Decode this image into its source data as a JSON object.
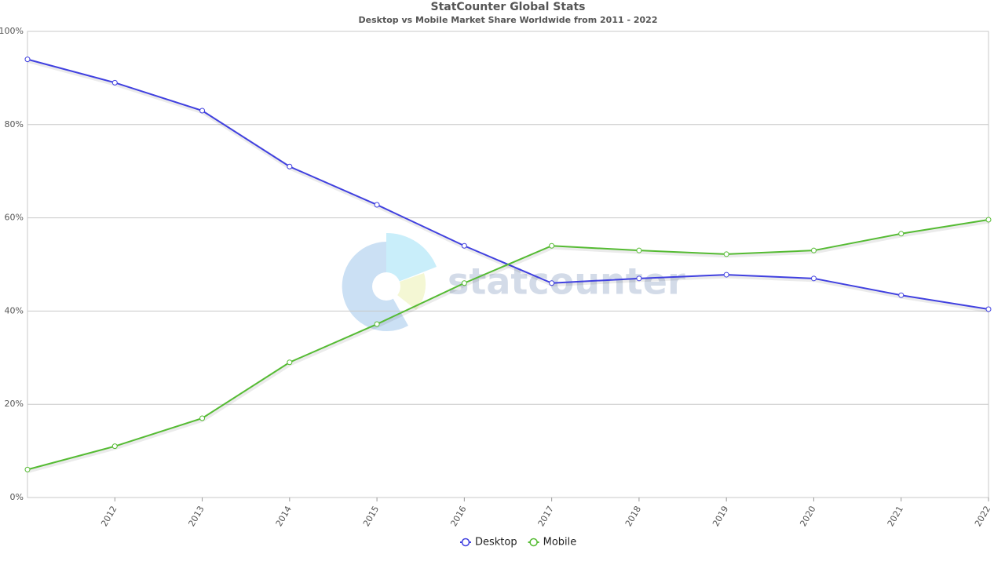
{
  "chart_data": {
    "type": "line",
    "title": "StatCounter Global Stats",
    "subtitle": "Desktop vs Mobile Market Share Worldwide from 2011 - 2022",
    "watermark": "statcounter",
    "x": [
      2011,
      2012,
      2013,
      2014,
      2015,
      2016,
      2017,
      2018,
      2019,
      2020,
      2021,
      2022
    ],
    "xlim": [
      2011,
      2022
    ],
    "xticks": [
      2012,
      2013,
      2014,
      2015,
      2016,
      2017,
      2018,
      2019,
      2020,
      2021,
      2022
    ],
    "ylim": [
      0,
      100
    ],
    "yticks": [
      {
        "value": 0,
        "label": "0%"
      },
      {
        "value": 20,
        "label": "20%"
      },
      {
        "value": 40,
        "label": "40%"
      },
      {
        "value": 60,
        "label": "60%"
      },
      {
        "value": 80,
        "label": "80%"
      },
      {
        "value": 100,
        "label": "100%"
      }
    ],
    "grid": true,
    "legend": "bottom",
    "series": [
      {
        "name": "Desktop",
        "color": "#4040e0",
        "values": [
          94,
          89,
          83,
          71,
          62.8,
          54,
          46,
          47,
          47.8,
          47,
          43.4,
          40.4
        ]
      },
      {
        "name": "Mobile",
        "color": "#55bb33",
        "values": [
          6,
          11,
          17,
          29,
          37.2,
          46,
          54,
          53,
          52.2,
          53,
          56.6,
          59.6
        ]
      }
    ]
  }
}
